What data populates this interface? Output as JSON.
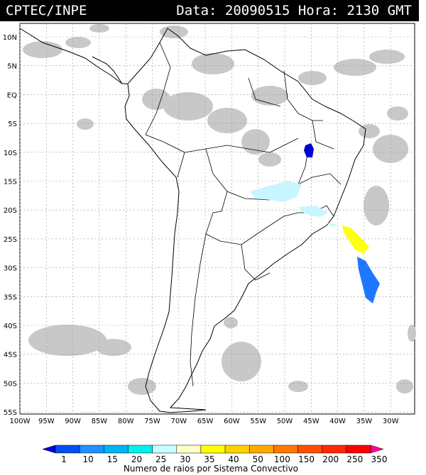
{
  "header": {
    "source": "CPTEC/INPE",
    "date_time": "Data: 20090515 Hora: 2130 GMT"
  },
  "axes": {
    "lat_labels": [
      "10N",
      "5N",
      "EQ",
      "5S",
      "10S",
      "15S",
      "20S",
      "25S",
      "30S",
      "35S",
      "40S",
      "45S",
      "50S",
      "55S"
    ],
    "lon_labels": [
      "100W",
      "95W",
      "90W",
      "85W",
      "80W",
      "75W",
      "70W",
      "65W",
      "60W",
      "55W",
      "50W",
      "45W",
      "40W",
      "35W",
      "30W"
    ]
  },
  "colorbar": {
    "title": "Numero de raios por Sistema Convectivo",
    "ticks": [
      "1",
      "10",
      "15",
      "20",
      "25",
      "30",
      "35",
      "40",
      "50",
      "100",
      "150",
      "200",
      "250",
      "350"
    ],
    "colors": [
      "#0000e0",
      "#0050f0",
      "#1e90ff",
      "#00b4f0",
      "#00f0f0",
      "#c8ffff",
      "#ffffc8",
      "#ffff00",
      "#ffd200",
      "#ffaa00",
      "#ff7800",
      "#ff5000",
      "#ff2800",
      "#ff0000",
      "#ff0096"
    ]
  },
  "legend_colors": {
    "clouds": "#c8c8c8",
    "lightblue_area": "#c8f5ff",
    "yellow_area": "#ffff14",
    "blue_area": "#1e78ff",
    "darkblue_area": "#0000d0"
  }
}
